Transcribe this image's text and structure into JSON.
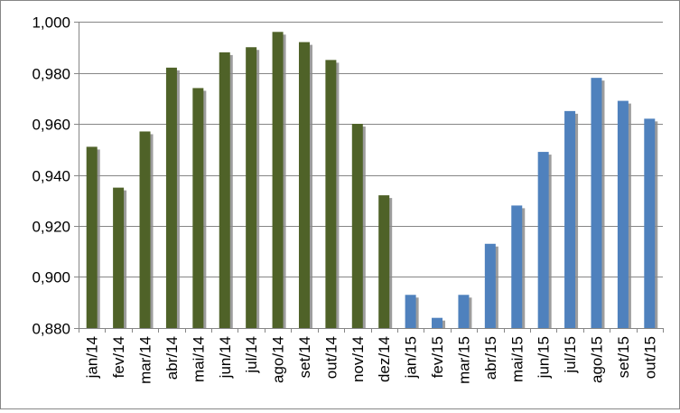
{
  "chart_data": {
    "type": "bar",
    "title": "",
    "xlabel": "",
    "ylabel": "",
    "ylim": [
      0.88,
      1.0
    ],
    "ytick_step": 0.02,
    "ytick_labels": [
      "0,880",
      "0,900",
      "0,920",
      "0,940",
      "0,960",
      "0,980",
      "1,000"
    ],
    "grid": true,
    "legend": "none",
    "categories": [
      "jan/14",
      "fev/14",
      "mar/14",
      "abr/14",
      "mai/14",
      "jun/14",
      "jul/14",
      "ago/14",
      "set/14",
      "out/14",
      "nov/14",
      "dez/14",
      "jan/15",
      "fev/15",
      "mar/15",
      "abr/15",
      "mai/15",
      "jun/15",
      "jul/15",
      "ago/15",
      "set/15",
      "out/15"
    ],
    "values": [
      0.951,
      0.935,
      0.957,
      0.982,
      0.974,
      0.988,
      0.99,
      0.996,
      0.992,
      0.985,
      0.96,
      0.932,
      0.893,
      0.884,
      0.893,
      0.913,
      0.928,
      0.949,
      0.965,
      0.978,
      0.969,
      0.962
    ],
    "bar_colors": [
      "#4F6228",
      "#4F6228",
      "#4F6228",
      "#4F6228",
      "#4F6228",
      "#4F6228",
      "#4F6228",
      "#4F6228",
      "#4F6228",
      "#4F6228",
      "#4F6228",
      "#4F6228",
      "#4F81BD",
      "#4F81BD",
      "#4F81BD",
      "#4F81BD",
      "#4F81BD",
      "#4F81BD",
      "#4F81BD",
      "#4F81BD",
      "#4F81BD",
      "#4F81BD"
    ],
    "colors": {
      "bar_2014": "#4F6228",
      "bar_2015": "#4F81BD",
      "grid": "#868686",
      "shadow": "#8C8C8C"
    }
  }
}
